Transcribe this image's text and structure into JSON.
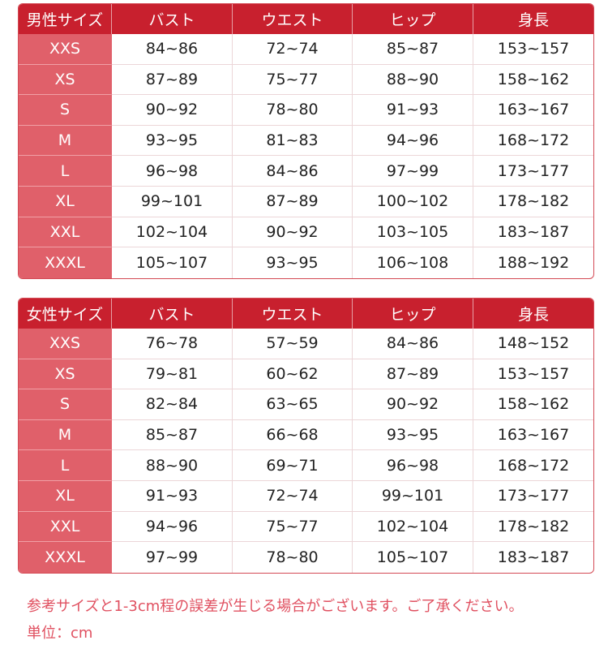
{
  "colors": {
    "header": "#c8202e",
    "size_column": "#e0606a",
    "note_text": "#e05060"
  },
  "tables": [
    {
      "id": "t-men",
      "headers": [
        "男性サイズ",
        "バスト",
        "ウエスト",
        "ヒップ",
        "身長"
      ],
      "rows": [
        [
          "XXS",
          "84~86",
          "72~74",
          "85~87",
          "153~157"
        ],
        [
          "XS",
          "87~89",
          "75~77",
          "88~90",
          "158~162"
        ],
        [
          "S",
          "90~92",
          "78~80",
          "91~93",
          "163~167"
        ],
        [
          "M",
          "93~95",
          "81~83",
          "94~96",
          "168~172"
        ],
        [
          "L",
          "96~98",
          "84~86",
          "97~99",
          "173~177"
        ],
        [
          "XL",
          "99~101",
          "87~89",
          "100~102",
          "178~182"
        ],
        [
          "XXL",
          "102~104",
          "90~92",
          "103~105",
          "183~187"
        ],
        [
          "XXXL",
          "105~107",
          "93~95",
          "106~108",
          "188~192"
        ]
      ]
    },
    {
      "id": "t-women",
      "headers": [
        "女性サイズ",
        "バスト",
        "ウエスト",
        "ヒップ",
        "身長"
      ],
      "rows": [
        [
          "XXS",
          "76~78",
          "57~59",
          "84~86",
          "148~152"
        ],
        [
          "XS",
          "79~81",
          "60~62",
          "87~89",
          "153~157"
        ],
        [
          "S",
          "82~84",
          "63~65",
          "90~92",
          "158~162"
        ],
        [
          "M",
          "85~87",
          "66~68",
          "93~95",
          "163~167"
        ],
        [
          "L",
          "88~90",
          "69~71",
          "96~98",
          "168~172"
        ],
        [
          "XL",
          "91~93",
          "72~74",
          "99~101",
          "173~177"
        ],
        [
          "XXL",
          "94~96",
          "75~77",
          "102~104",
          "178~182"
        ],
        [
          "XXXL",
          "97~99",
          "78~80",
          "105~107",
          "183~187"
        ]
      ]
    }
  ],
  "notes": {
    "disclaimer": "参考サイズと1-3cm程の誤差が生じる場合がございます。ご了承ください。",
    "unit": "単位：cm"
  }
}
